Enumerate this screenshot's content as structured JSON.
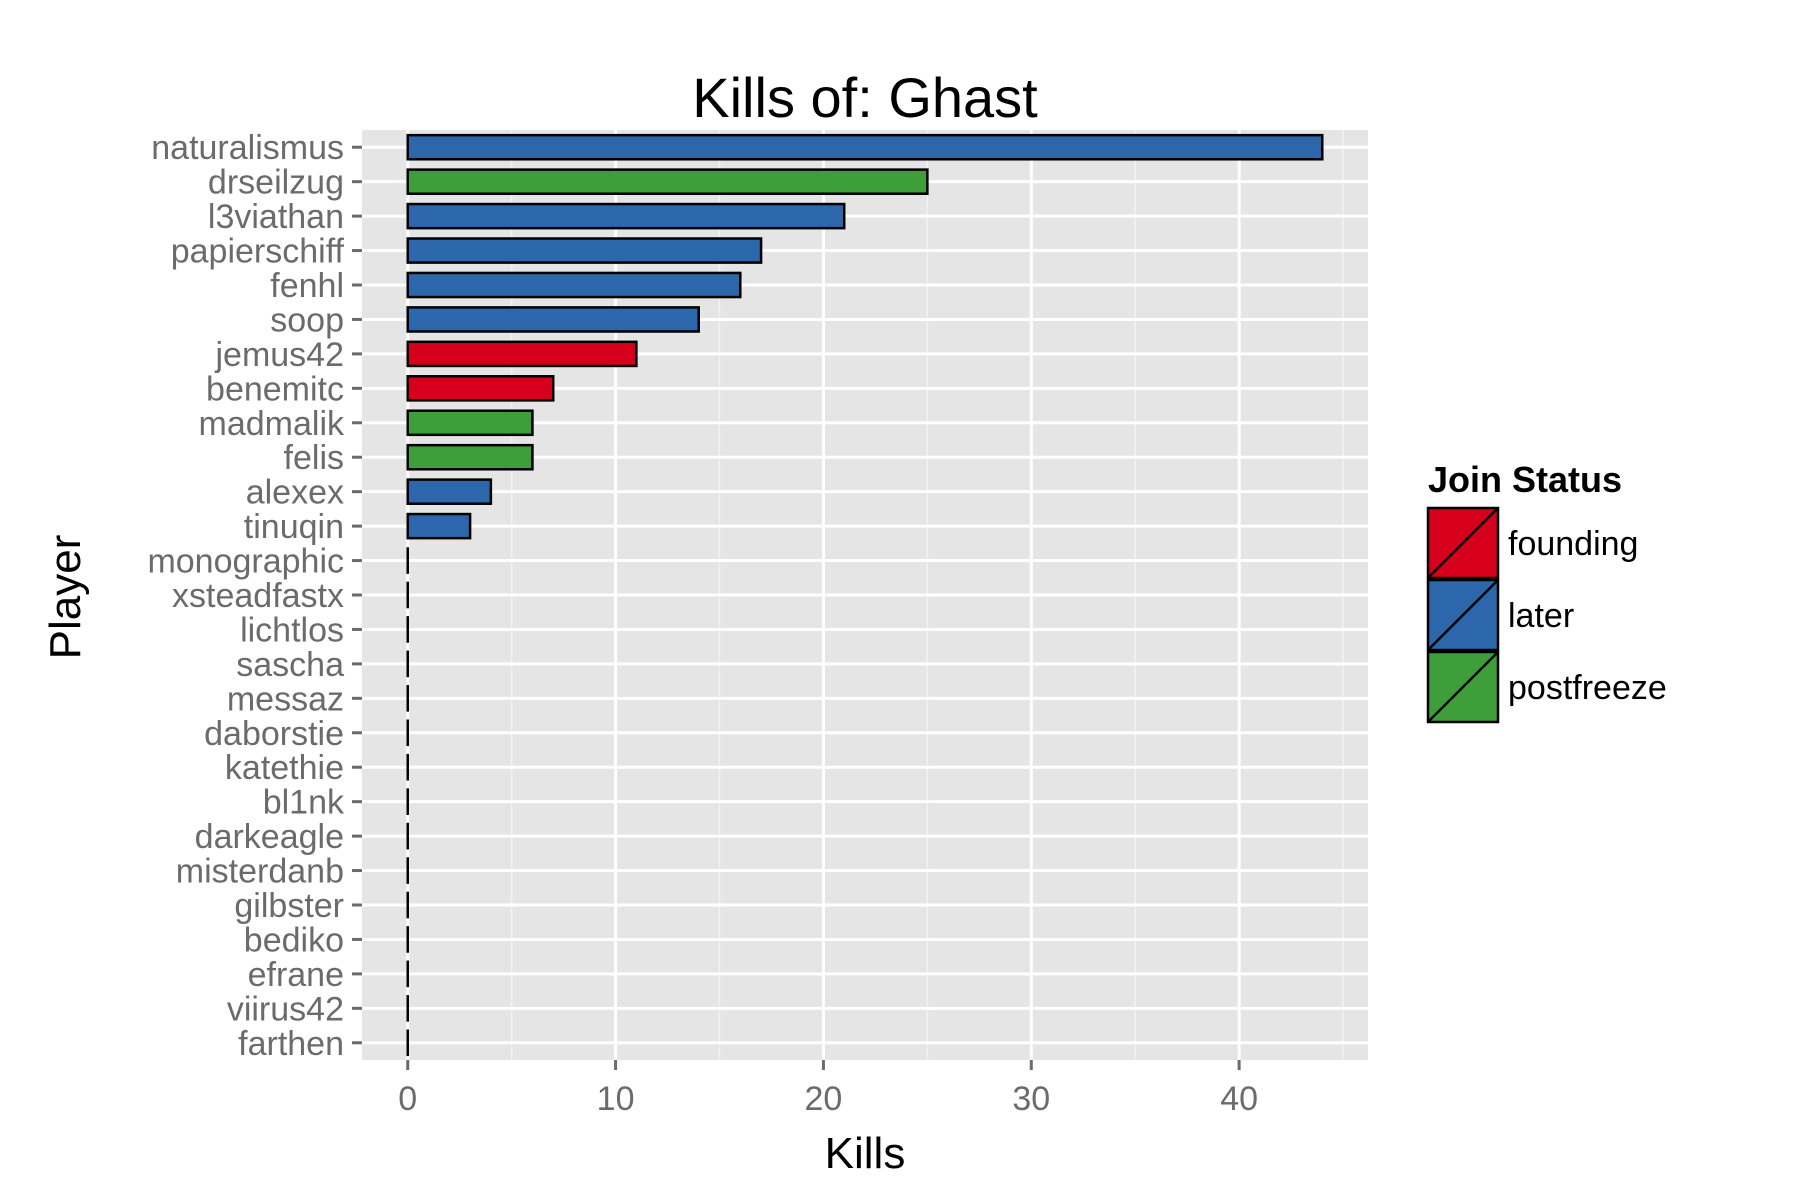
{
  "chart_data": {
    "type": "bar",
    "orientation": "horizontal",
    "title": "Kills of: Ghast",
    "xlabel": "Kills",
    "ylabel": "Player",
    "xlim": [
      -2.2,
      46.2
    ],
    "xticks": [
      0,
      10,
      20,
      30,
      40
    ],
    "grid": true,
    "legend": {
      "title": "Join Status",
      "position": "right",
      "entries": [
        {
          "name": "founding",
          "color": "#D7001C"
        },
        {
          "name": "later",
          "color": "#2C67AB"
        },
        {
          "name": "postfreeze",
          "color": "#3E9E3A"
        }
      ]
    },
    "categories": [
      "naturalismus",
      "drseilzug",
      "l3viathan",
      "papierschiff",
      "fenhl",
      "soop",
      "jemus42",
      "benemitc",
      "madmalik",
      "felis",
      "alexex",
      "tinuqin",
      "monographic",
      "xsteadfastx",
      "lichtlos",
      "sascha",
      "messaz",
      "daborstie",
      "katethie",
      "bl1nk",
      "darkeagle",
      "misterdanb",
      "gilbster",
      "bediko",
      "efrane",
      "viirus42",
      "farthen"
    ],
    "values": [
      44,
      25,
      21,
      17,
      16,
      14,
      11,
      7,
      6,
      6,
      4,
      3,
      0,
      0,
      0,
      0,
      0,
      0,
      0,
      0,
      0,
      0,
      0,
      0,
      0,
      0,
      0
    ],
    "groups": [
      "later",
      "postfreeze",
      "later",
      "later",
      "later",
      "later",
      "founding",
      "founding",
      "postfreeze",
      "postfreeze",
      "later",
      "later",
      "later",
      "later",
      "later",
      "later",
      "later",
      "later",
      "later",
      "later",
      "later",
      "later",
      "later",
      "later",
      "later",
      "later",
      "later"
    ]
  }
}
